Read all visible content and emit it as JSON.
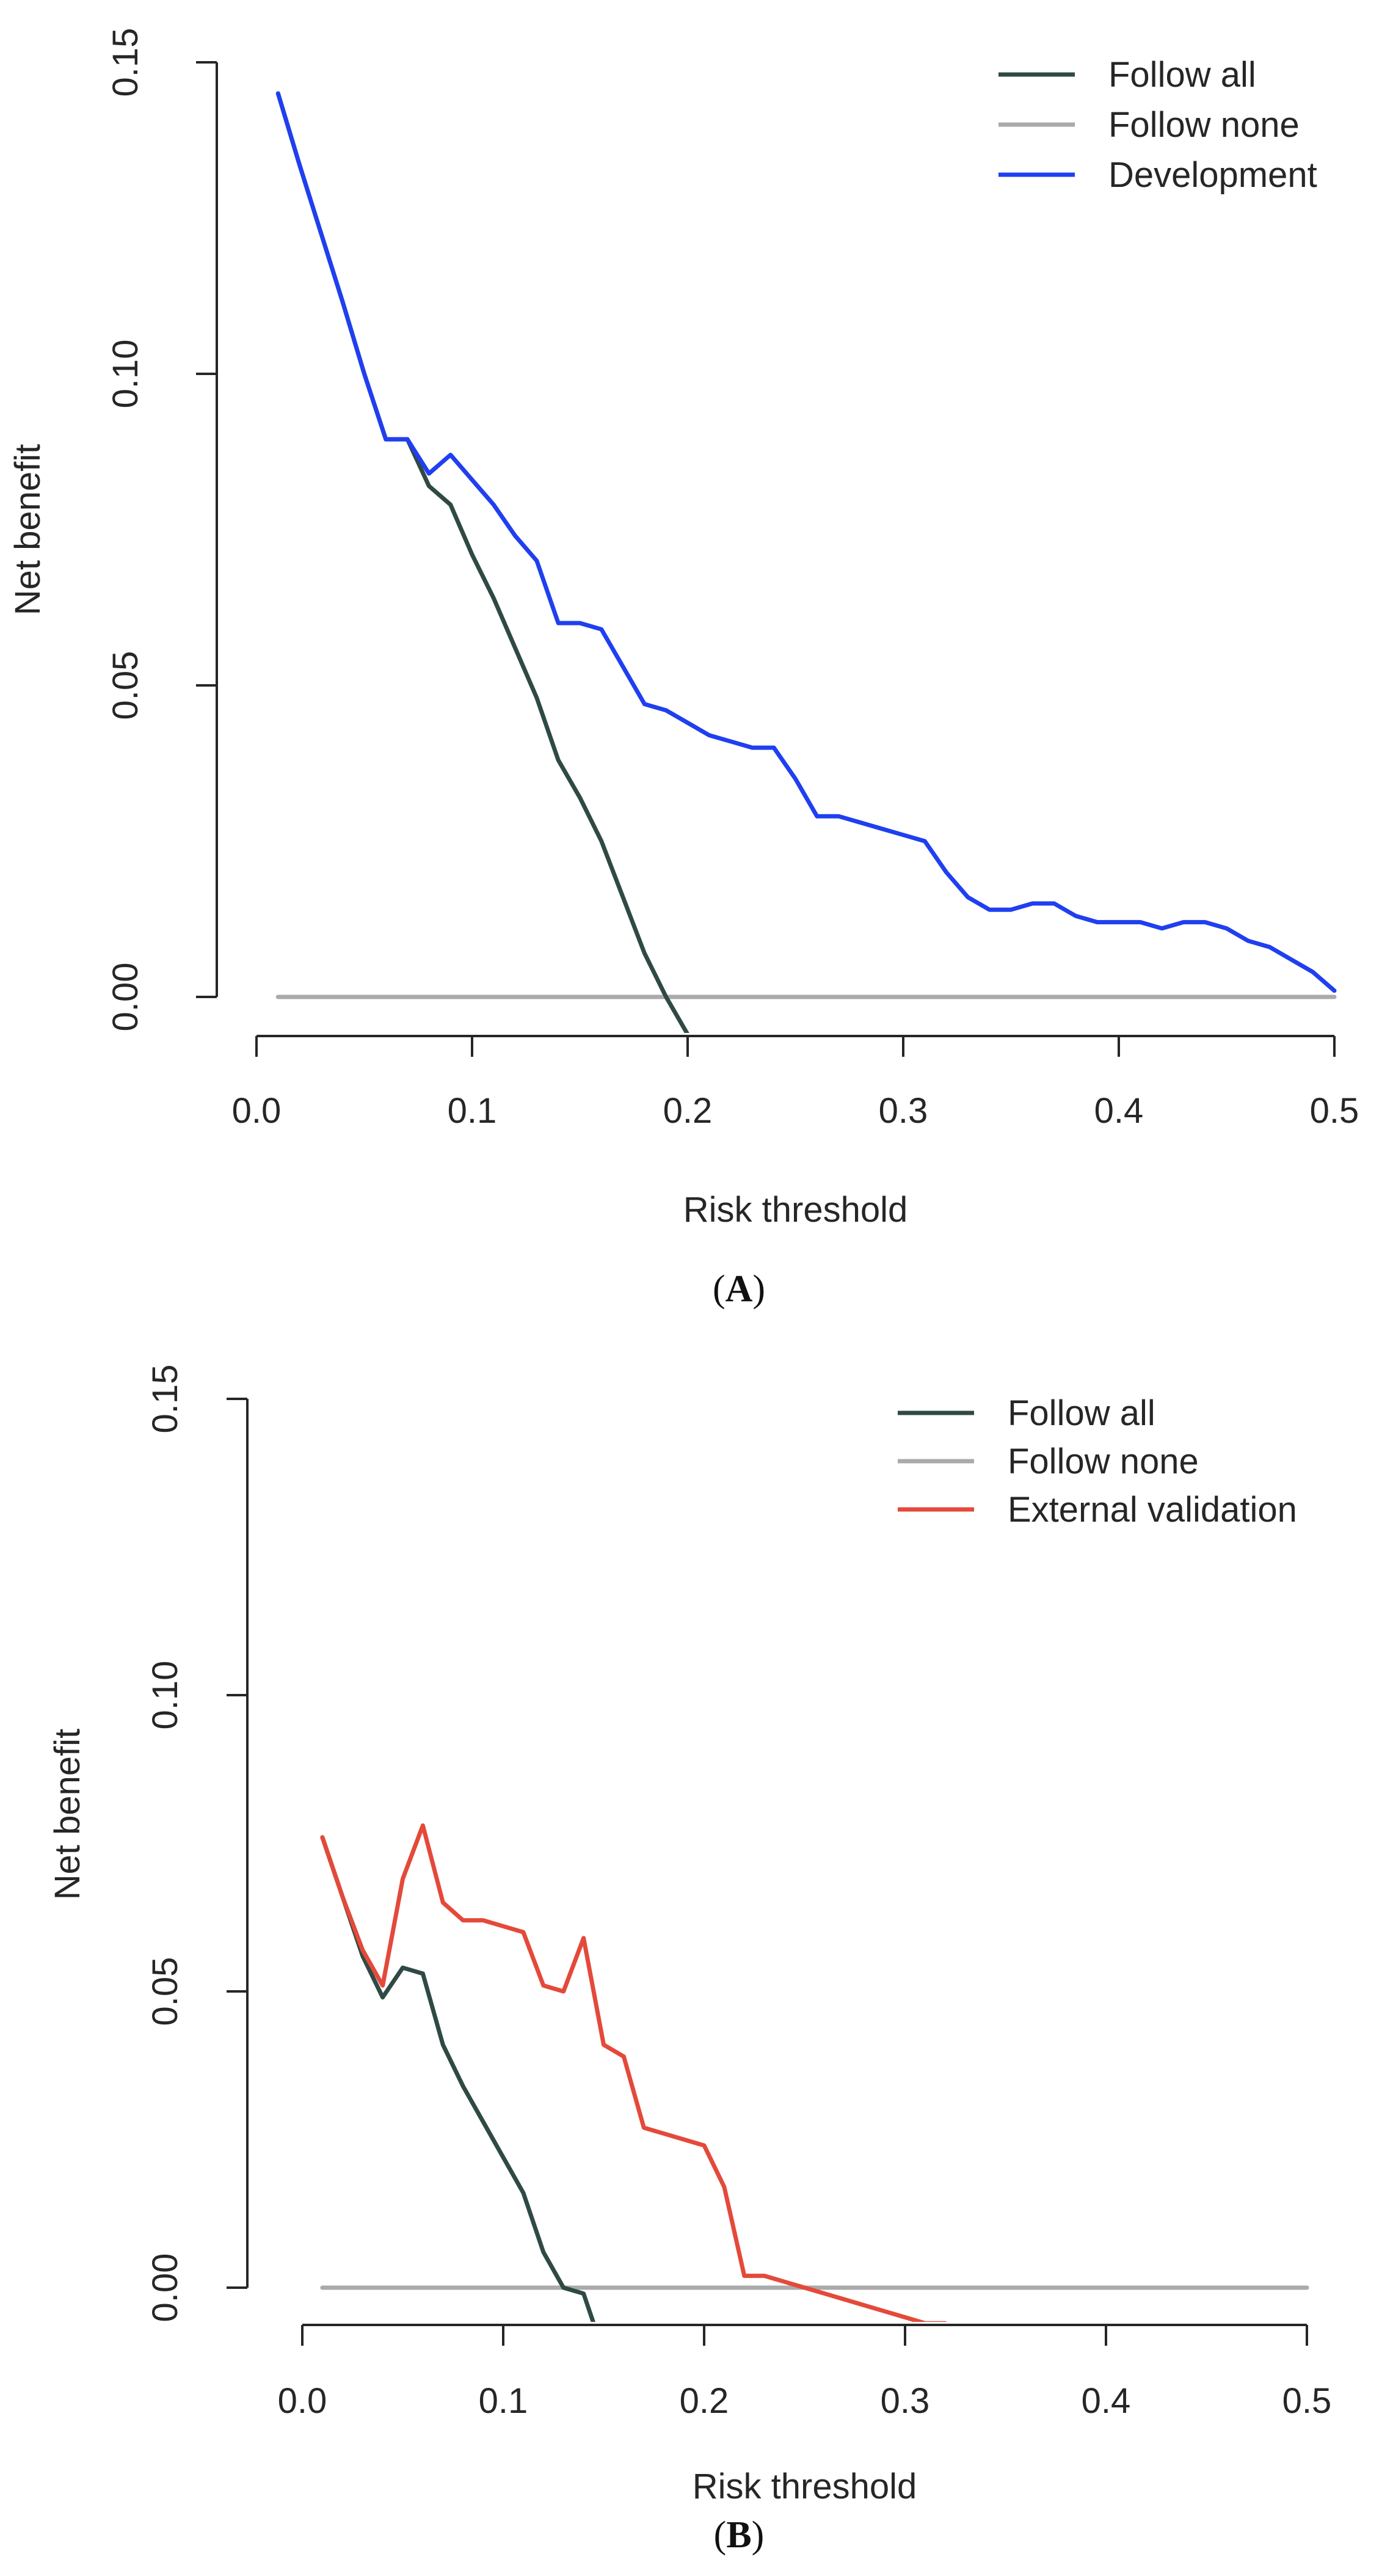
{
  "chart_data": [
    {
      "type": "line",
      "panel": "A",
      "xlabel": "Risk threshold",
      "ylabel": "Net benefit",
      "xlim": [
        0.0,
        0.5
      ],
      "ylim": [
        0.0,
        0.15
      ],
      "xticks": [
        "0.0",
        "0.1",
        "0.2",
        "0.3",
        "0.4",
        "0.5"
      ],
      "yticks": [
        "0.00",
        "0.05",
        "0.10",
        "0.15"
      ],
      "legend_position": "top-right",
      "series": [
        {
          "name": "Follow all",
          "color": "#2f4a45",
          "x": [
            0.01,
            0.02,
            0.03,
            0.04,
            0.05,
            0.06,
            0.07,
            0.08,
            0.09,
            0.1,
            0.11,
            0.12,
            0.13,
            0.14,
            0.15,
            0.16,
            0.17,
            0.18,
            0.19,
            0.2
          ],
          "y": [
            0.145,
            0.1335,
            0.1225,
            0.1115,
            0.1,
            0.0895,
            0.0895,
            0.082,
            0.079,
            0.071,
            0.064,
            0.056,
            0.048,
            0.038,
            0.032,
            0.025,
            0.016,
            0.007,
            0.0,
            -0.006
          ]
        },
        {
          "name": "Follow none",
          "color": "#aaaaaa",
          "x": [
            0.01,
            0.5
          ],
          "y": [
            0.0,
            0.0
          ]
        },
        {
          "name": "Development",
          "color": "#1f3ff0",
          "x": [
            0.01,
            0.02,
            0.03,
            0.04,
            0.05,
            0.06,
            0.07,
            0.08,
            0.09,
            0.1,
            0.11,
            0.12,
            0.13,
            0.14,
            0.15,
            0.16,
            0.17,
            0.18,
            0.19,
            0.2,
            0.21,
            0.22,
            0.23,
            0.24,
            0.25,
            0.26,
            0.27,
            0.28,
            0.29,
            0.3,
            0.31,
            0.32,
            0.33,
            0.34,
            0.35,
            0.36,
            0.37,
            0.38,
            0.39,
            0.4,
            0.41,
            0.42,
            0.43,
            0.44,
            0.45,
            0.46,
            0.47,
            0.48,
            0.49,
            0.5
          ],
          "y": [
            0.145,
            0.1335,
            0.1225,
            0.1115,
            0.1,
            0.0895,
            0.0895,
            0.084,
            0.087,
            0.083,
            0.079,
            0.074,
            0.07,
            0.06,
            0.06,
            0.059,
            0.053,
            0.047,
            0.046,
            0.044,
            0.042,
            0.041,
            0.04,
            0.04,
            0.035,
            0.029,
            0.029,
            0.028,
            0.027,
            0.026,
            0.025,
            0.02,
            0.016,
            0.014,
            0.014,
            0.015,
            0.015,
            0.013,
            0.012,
            0.012,
            0.012,
            0.011,
            0.012,
            0.012,
            0.011,
            0.009,
            0.008,
            0.006,
            0.004,
            0.001
          ]
        }
      ]
    },
    {
      "type": "line",
      "panel": "B",
      "xlabel": "Risk threshold",
      "ylabel": "Net benefit",
      "xlim": [
        0.0,
        0.5
      ],
      "ylim": [
        0.0,
        0.15
      ],
      "xticks": [
        "0.0",
        "0.1",
        "0.2",
        "0.3",
        "0.4",
        "0.5"
      ],
      "yticks": [
        "0.00",
        "0.05",
        "0.10",
        "0.15"
      ],
      "legend_position": "top-right",
      "series": [
        {
          "name": "Follow all",
          "color": "#2f4a45",
          "x": [
            0.01,
            0.02,
            0.03,
            0.04,
            0.05,
            0.06,
            0.07,
            0.08,
            0.09,
            0.1,
            0.11,
            0.12,
            0.13,
            0.14,
            0.145
          ],
          "y": [
            0.076,
            0.066,
            0.056,
            0.049,
            0.054,
            0.053,
            0.041,
            0.034,
            0.028,
            0.022,
            0.016,
            0.006,
            0.0,
            -0.001,
            -0.006
          ]
        },
        {
          "name": "Follow none",
          "color": "#aaaaaa",
          "x": [
            0.01,
            0.5
          ],
          "y": [
            0.0,
            0.0
          ]
        },
        {
          "name": "External validation",
          "color": "#e4493a",
          "x": [
            0.01,
            0.02,
            0.03,
            0.04,
            0.05,
            0.06,
            0.07,
            0.08,
            0.09,
            0.1,
            0.11,
            0.12,
            0.13,
            0.14,
            0.15,
            0.16,
            0.17,
            0.18,
            0.19,
            0.2,
            0.21,
            0.22,
            0.23,
            0.24,
            0.25,
            0.26,
            0.27,
            0.28,
            0.29,
            0.3,
            0.31,
            0.32
          ],
          "y": [
            0.076,
            0.066,
            0.057,
            0.051,
            0.069,
            0.078,
            0.065,
            0.062,
            0.062,
            0.061,
            0.06,
            0.051,
            0.05,
            0.059,
            0.041,
            0.039,
            0.027,
            0.026,
            0.025,
            0.024,
            0.017,
            0.002,
            0.002,
            0.001,
            0.0,
            -0.001,
            -0.002,
            -0.003,
            -0.004,
            -0.005,
            -0.006,
            -0.006
          ]
        }
      ]
    }
  ],
  "captions": [
    "A",
    "B"
  ]
}
